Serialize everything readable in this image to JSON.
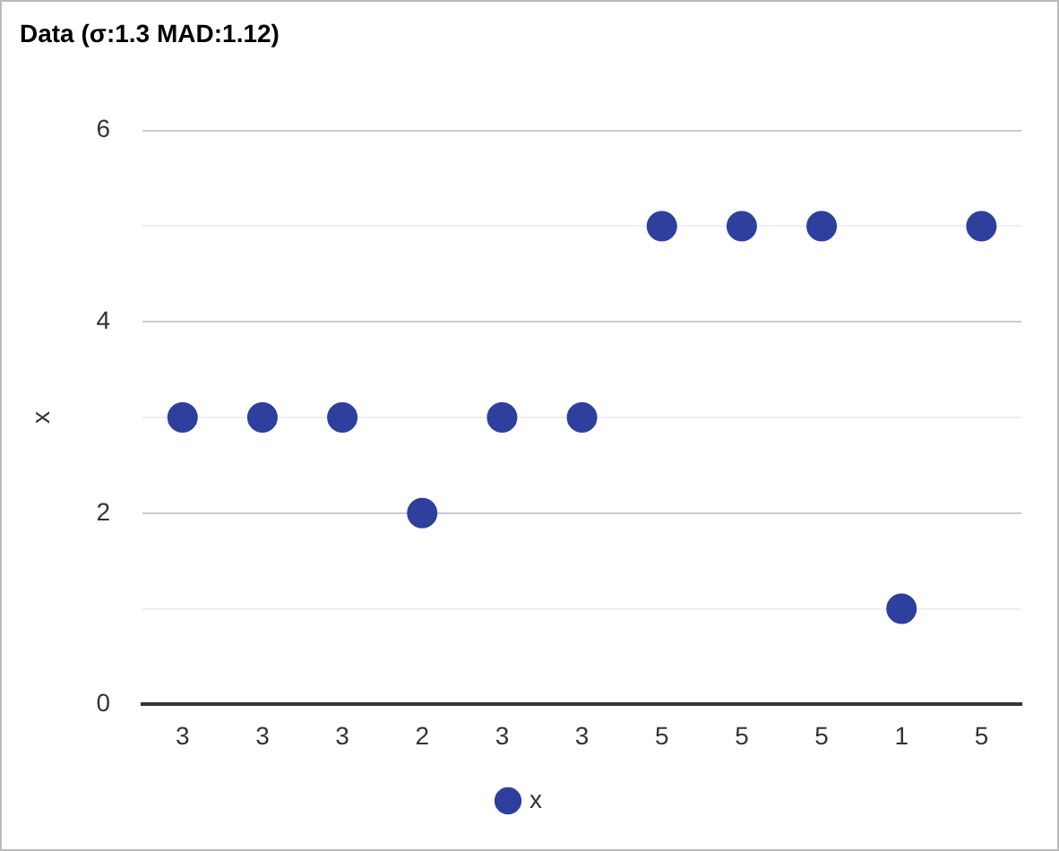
{
  "chart_data": {
    "type": "scatter",
    "title": "Data (σ:1.3 MAD:1.12)",
    "ylabel": "x",
    "categories": [
      "3",
      "3",
      "3",
      "2",
      "3",
      "3",
      "5",
      "5",
      "5",
      "1",
      "5"
    ],
    "series": [
      {
        "name": "x",
        "color": "#2f3f9e",
        "values": [
          3,
          3,
          3,
          2,
          3,
          3,
          5,
          5,
          5,
          1,
          5
        ]
      }
    ],
    "ylim": [
      0,
      6
    ],
    "yticks": [
      0,
      {
        "value": 1,
        "label": null
      },
      2,
      {
        "value": 3,
        "label": null
      },
      4,
      {
        "value": 5,
        "label": null
      },
      6
    ],
    "grid": "y",
    "legend": "bottom",
    "marker": "circle"
  }
}
